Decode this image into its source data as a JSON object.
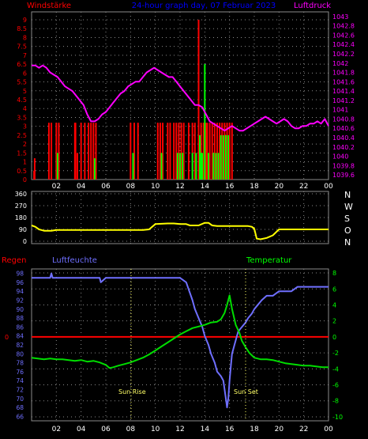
{
  "header": {
    "left_label": "Windstärke",
    "title": "24-hour graph day, 07 Februar 2023",
    "right_label": "Luftdruck"
  },
  "compass": [
    "N",
    "W",
    "S",
    "O",
    "N"
  ],
  "bottom_header": {
    "rain_label": "Regen",
    "humidity_label": "Luftfeuchte",
    "temperature_label": "Temperatur"
  },
  "annotations": {
    "sunrise": "Sun Rise",
    "sunset": "Sun Set"
  },
  "x_ticks": [
    "02",
    "04",
    "06",
    "08",
    "10",
    "12",
    "14",
    "16",
    "18",
    "20",
    "22",
    "00"
  ],
  "bottom_x_ticks": [
    "02",
    "04",
    "06",
    "08",
    "10",
    "12",
    "14",
    "16",
    "18",
    "20",
    "22",
    "00"
  ],
  "colors": {
    "wind": "#ff0000",
    "gust": "#00ff00",
    "pressure": "#ff00ff",
    "direction": "#ffff00",
    "humidity": "#6f6fff",
    "temperature": "#00dd00",
    "rain": "#ff0000",
    "title": "#0000ff",
    "axis_left_top": "#ff0000",
    "axis_right_top": "#ff00ff",
    "axis_left_mid": "#ffffff",
    "axis_left_bottom": "#6f6fff",
    "axis_right_bottom": "#00ff00",
    "grid": "#8a8a8a"
  },
  "chart_data": [
    {
      "type": "line",
      "title": "24-hour graph day, 07 Februar 2023",
      "x_unit": "hours",
      "left_axis": {
        "label": "Windstärke",
        "ticks": [
          "9",
          "8.5",
          "8",
          "7.5",
          "7",
          "6.5",
          "6",
          "5.5",
          "5",
          "4.5",
          "4",
          "3.5",
          "3",
          "2.5",
          "2",
          "1.5",
          "1",
          "0.5",
          "0"
        ],
        "range": [
          0,
          9
        ]
      },
      "right_axis": {
        "label": "Luftdruck",
        "ticks": [
          "1043",
          "1042.8",
          "1042.6",
          "1042.4",
          "1042.2",
          "1042",
          "1041.8",
          "1041.6",
          "1041.4",
          "1041.2",
          "1041",
          "1040.8",
          "1040.6",
          "1040.4",
          "1040.2",
          "1040",
          "1039.8",
          "1039.6"
        ],
        "range": [
          1039.5,
          1043.1
        ]
      },
      "series": [
        {
          "axis": "right",
          "x": [
            0,
            0.3,
            0.6,
            0.9,
            1.2,
            1.5,
            1.8,
            2.1,
            2.4,
            2.7,
            3,
            3.3,
            3.6,
            3.9,
            4.2,
            4.5,
            4.8,
            5.1,
            5.4,
            5.7,
            6,
            6.3,
            6.6,
            6.9,
            7.2,
            7.5,
            7.8,
            8.1,
            8.4,
            8.7,
            9,
            9.3,
            9.6,
            9.9,
            10.2,
            10.5,
            10.8,
            11.1,
            11.4,
            11.7,
            12,
            12.3,
            12.6,
            12.9,
            13.2,
            13.5,
            13.8,
            14.1,
            14.4,
            14.7,
            15,
            15.3,
            15.6,
            15.9,
            16.2,
            16.5,
            16.8,
            17.1,
            17.4,
            17.7,
            18,
            18.3,
            18.6,
            18.9,
            19.2,
            19.5,
            19.8,
            20.1,
            20.4,
            20.7,
            21,
            21.3,
            21.6,
            21.9,
            22.2,
            22.5,
            22.8,
            23.1,
            23.4,
            23.7,
            24
          ],
          "values": [
            1041.95,
            1041.95,
            1041.9,
            1041.95,
            1041.9,
            1041.8,
            1041.75,
            1041.7,
            1041.6,
            1041.5,
            1041.45,
            1041.4,
            1041.3,
            1041.2,
            1041.1,
            1040.9,
            1040.75,
            1040.75,
            1040.8,
            1040.9,
            1040.95,
            1041.05,
            1041.15,
            1041.25,
            1041.35,
            1041.4,
            1041.5,
            1041.55,
            1041.6,
            1041.6,
            1041.7,
            1041.8,
            1041.85,
            1041.9,
            1041.85,
            1041.8,
            1041.75,
            1041.7,
            1041.7,
            1041.6,
            1041.5,
            1041.4,
            1041.3,
            1041.2,
            1041.1,
            1041.1,
            1041.05,
            1040.9,
            1040.75,
            1040.7,
            1040.65,
            1040.6,
            1040.55,
            1040.6,
            1040.65,
            1040.6,
            1040.55,
            1040.55,
            1040.6,
            1040.65,
            1040.7,
            1040.75,
            1040.8,
            1040.85,
            1040.8,
            1040.75,
            1040.7,
            1040.75,
            1040.8,
            1040.75,
            1040.65,
            1040.6,
            1040.6,
            1040.65,
            1040.65,
            1040.7,
            1040.7,
            1040.75,
            1040.7,
            1040.8,
            1040.65
          ]
        },
        {
          "axis": "left",
          "type": "bar",
          "x": [
            0.2,
            0.25,
            1.4,
            1.6,
            2.0,
            2.2,
            3.5,
            3.55,
            3.7,
            4.0,
            4.3,
            4.6,
            4.8,
            5.0,
            5.2,
            8.0,
            8.3,
            8.6,
            10.2,
            10.4,
            10.6,
            11.0,
            11.2,
            11.5,
            11.7,
            11.9,
            12.1,
            12.3,
            12.7,
            13.0,
            13.2,
            13.5,
            13.7,
            13.9,
            14.1,
            14.2,
            14.4,
            14.6,
            14.8,
            15.0,
            15.2,
            15.4,
            15.6,
            15.8,
            16.0,
            16.2
          ],
          "values": [
            0.5,
            1.2,
            3.2,
            3.2,
            3.2,
            3.2,
            3.2,
            3.2,
            1.5,
            3.2,
            3.2,
            3.2,
            3.2,
            3.2,
            3.2,
            3.2,
            3.2,
            3.2,
            3.2,
            3.2,
            3.2,
            3.2,
            3.2,
            3.2,
            3.2,
            3.2,
            3.2,
            3.2,
            3.2,
            3.2,
            3.2,
            9.0,
            3.2,
            3.2,
            3.2,
            3.2,
            3.2,
            3.2,
            3.2,
            3.2,
            3.2,
            3.2,
            3.2,
            3.2,
            3.2,
            3.2
          ]
        },
        {
          "axis": "left",
          "type": "bar",
          "x": [
            2.1,
            5.1,
            8.2,
            10.5,
            11.8,
            12.0,
            12.2,
            13.0,
            13.3,
            13.6,
            13.7,
            13.8,
            14.0,
            14.3,
            14.7,
            14.9,
            15.1,
            15.3,
            15.5,
            15.7,
            15.9
          ],
          "values": [
            1.5,
            1.2,
            1.5,
            1.5,
            1.5,
            1.5,
            1.5,
            1.5,
            1.5,
            2.5,
            1.5,
            1.5,
            6.5,
            1.5,
            1.5,
            1.5,
            1.5,
            2.5,
            2.5,
            2.5,
            2.5
          ]
        }
      ]
    },
    {
      "type": "line",
      "title": "",
      "left_axis": {
        "ticks": [
          "360",
          "270",
          "180",
          "90",
          "0"
        ],
        "range": [
          0,
          360
        ]
      },
      "right_axis": {
        "ticks": [
          "N",
          "W",
          "S",
          "O",
          "N"
        ]
      },
      "series": [
        {
          "x": [
            0,
            0.3,
            0.6,
            0.8,
            1.0,
            1.6,
            2.0,
            3.0,
            4.0,
            5.0,
            6.0,
            7.0,
            7.5,
            8.0,
            9.0,
            9.5,
            10.0,
            11.0,
            11.5,
            12.0,
            12.5,
            12.8,
            13.0,
            13.5,
            14.0,
            14.3,
            14.6,
            15.0,
            16.0,
            17.0,
            17.5,
            17.8,
            18.0,
            18.2,
            18.5,
            19.0,
            19.5,
            20.0,
            21.0,
            22.0,
            23.0,
            24.0
          ],
          "values": [
            120,
            110,
            90,
            85,
            80,
            80,
            85,
            85,
            85,
            85,
            85,
            85,
            85,
            85,
            85,
            90,
            130,
            135,
            135,
            130,
            130,
            120,
            120,
            120,
            140,
            140,
            120,
            115,
            115,
            115,
            115,
            110,
            95,
            20,
            15,
            25,
            45,
            90,
            90,
            90,
            90,
            90
          ]
        }
      ]
    },
    {
      "type": "line",
      "title": "",
      "left_axis": {
        "label": "Luftfeuchte",
        "ticks": [
          "98",
          "96",
          "94",
          "92",
          "90",
          "88",
          "86",
          "84",
          "82",
          "80",
          "78",
          "76",
          "74",
          "72",
          "70",
          "68",
          "66"
        ],
        "range": [
          65,
          99
        ]
      },
      "right_axis": {
        "label": "Temperatur",
        "ticks": [
          "8",
          "6",
          "4",
          "2",
          "0",
          "-2",
          "-4",
          "-6",
          "-8",
          "-10"
        ],
        "range": [
          -10.5,
          8.5
        ]
      },
      "rain_axis": {
        "label": "Regen",
        "ticks": [
          "0"
        ]
      },
      "series": [
        {
          "axis": "left",
          "x": [
            0,
            1,
            1.5,
            1.6,
            1.7,
            2,
            3,
            4,
            5,
            5.5,
            5.6,
            6,
            7,
            8,
            9,
            10,
            11,
            12,
            12.5,
            13,
            13.2,
            13.5,
            13.8,
            14,
            14.3,
            14.5,
            14.8,
            15,
            15.3,
            15.5,
            15.7,
            15.8,
            15.9,
            16,
            16.1,
            16.2,
            16.4,
            16.7,
            17,
            17.3,
            17.5,
            17.8,
            18,
            18.3,
            18.6,
            19,
            19.5,
            20,
            20.5,
            21,
            21.5,
            22,
            22.5,
            23,
            23.5,
            24
          ],
          "values": [
            97,
            97,
            97,
            98,
            97,
            97,
            97,
            97,
            97,
            97,
            96,
            97,
            97,
            97,
            97,
            97,
            97,
            97,
            96,
            92,
            90,
            88,
            86,
            84,
            82,
            80,
            78,
            76,
            75,
            74,
            70,
            68,
            70,
            74,
            77,
            80,
            82,
            85,
            86,
            87,
            88,
            89,
            90,
            91,
            92,
            93,
            93,
            94,
            94,
            94,
            95,
            95,
            95,
            95,
            95,
            95
          ]
        },
        {
          "axis": "right",
          "x": [
            0,
            0.5,
            1,
            1.5,
            2,
            2.5,
            3,
            3.5,
            4,
            4.5,
            5,
            5.5,
            6,
            6.3,
            6.6,
            7,
            7.5,
            8,
            8.5,
            9,
            9.5,
            10,
            10.5,
            11,
            11.5,
            12,
            12.5,
            13,
            13.5,
            14,
            14.5,
            15,
            15.3,
            15.6,
            15.8,
            16,
            16.2,
            16.5,
            16.8,
            17,
            17.3,
            17.6,
            18,
            18.5,
            19,
            19.5,
            20,
            20.5,
            21,
            21.5,
            22,
            22.5,
            23,
            23.5,
            24
          ],
          "values": [
            -2.6,
            -2.7,
            -2.8,
            -2.7,
            -2.8,
            -2.8,
            -2.9,
            -3.0,
            -2.9,
            -3.1,
            -3.0,
            -3.2,
            -3.5,
            -3.9,
            -3.8,
            -3.6,
            -3.4,
            -3.2,
            -2.9,
            -2.6,
            -2.2,
            -1.7,
            -1.2,
            -0.7,
            -0.2,
            0.3,
            0.7,
            1.1,
            1.3,
            1.5,
            1.8,
            1.9,
            2.2,
            3.0,
            4.0,
            5.2,
            3.5,
            1.5,
            0.5,
            -0.5,
            -1.3,
            -2.0,
            -2.6,
            -2.8,
            -2.8,
            -2.9,
            -3.1,
            -3.3,
            -3.4,
            -3.5,
            -3.6,
            -3.6,
            -3.7,
            -3.8,
            -3.8
          ]
        },
        {
          "axis": "rain",
          "x": [
            0,
            24
          ],
          "values": [
            0,
            0
          ]
        }
      ]
    }
  ]
}
